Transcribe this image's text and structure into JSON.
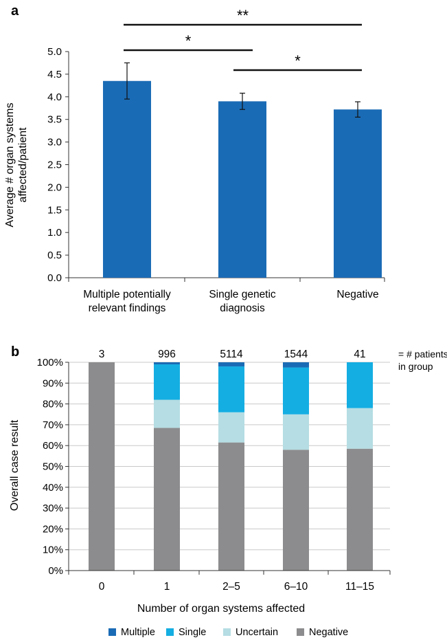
{
  "chart_data": [
    {
      "panel_label": "a",
      "type": "bar",
      "categories": [
        [
          "Multiple potentially",
          "relevant findings"
        ],
        [
          "Single genetic",
          "diagnosis"
        ],
        [
          "Negative"
        ]
      ],
      "values": [
        4.35,
        3.9,
        3.72
      ],
      "error": [
        0.4,
        0.18,
        0.17
      ],
      "ylabel": [
        "Average # organ systems",
        "affected/patient"
      ],
      "xlabel": "",
      "ylim": [
        0,
        5
      ],
      "yticks": [
        "0.0",
        "0.5",
        "1.0",
        "1.5",
        "2.0",
        "2.5",
        "3.0",
        "3.5",
        "4.0",
        "4.5",
        "5.0"
      ],
      "color": "#1a6bb5",
      "significance": [
        {
          "from": 0,
          "to": 2,
          "label": "**"
        },
        {
          "from": 0,
          "to": 1,
          "label": "*"
        },
        {
          "from": 1,
          "to": 2,
          "label": "*"
        }
      ]
    },
    {
      "panel_label": "b",
      "type": "bar",
      "stacked": true,
      "categories": [
        "0",
        "1",
        "2–5",
        "6–10",
        "11–15"
      ],
      "group_counts": [
        "3",
        "996",
        "5114",
        "1544",
        "41"
      ],
      "counts_note": [
        "= # patients",
        "in group"
      ],
      "series": [
        {
          "name": "Negative",
          "color": "#8c8c8e",
          "values": [
            100,
            68.5,
            61.5,
            58,
            58.5
          ]
        },
        {
          "name": "Uncertain",
          "color": "#b5dde3",
          "values": [
            0,
            13.5,
            14.5,
            17,
            19.5
          ]
        },
        {
          "name": "Single",
          "color": "#14aee2",
          "values": [
            0,
            17,
            22,
            22.5,
            22
          ]
        },
        {
          "name": "Multiple",
          "color": "#1a6bb5",
          "values": [
            0,
            1,
            2,
            2.5,
            0
          ]
        }
      ],
      "legend_order": [
        "Multiple",
        "Single",
        "Uncertain",
        "Negative"
      ],
      "legend_position": "bottom",
      "ylabel": "Overall case result",
      "xlabel": "Number of organ systems affected",
      "ylim": [
        0,
        100
      ],
      "yticks": [
        "0%",
        "10%",
        "20%",
        "30%",
        "40%",
        "50%",
        "60%",
        "70%",
        "80%",
        "90%",
        "100%"
      ],
      "grid": true
    }
  ]
}
